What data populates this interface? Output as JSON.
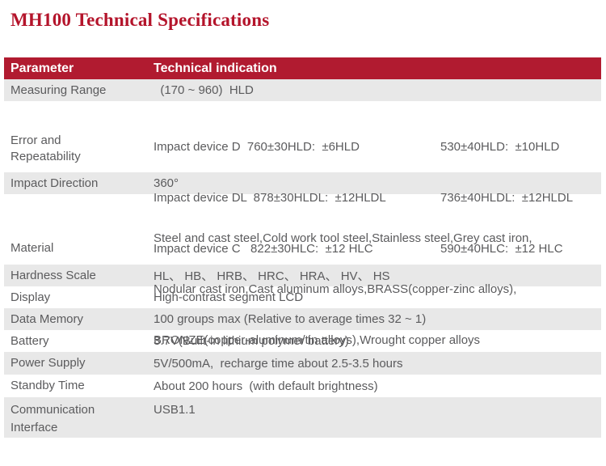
{
  "page": {
    "title": "MH100 Technical Specifications"
  },
  "colors": {
    "accent_red": "#b11b30",
    "title_red": "#b4142b",
    "row_gray": "#e8e8e8",
    "row_white": "#ffffff",
    "body_text_gray": "#5b5b5d",
    "header_text": "#ffffff"
  },
  "table": {
    "headers": {
      "parameter": "Parameter",
      "indication": "Technical indication"
    },
    "rows": [
      {
        "parameter": "Measuring Range",
        "value": "  (170 ~ 960)  HLD"
      },
      {
        "parameter": "Error and Repeatability",
        "lines": [
          {
            "left": "Impact device D  760±30HLD:  ±6HLD",
            "right": "530±40HLD:  ±10HLD"
          },
          {
            "left": "Impact device DL  878±30HLDL:  ±12HLDL",
            "right": "736±40HLDL:  ±12HLDL"
          },
          {
            "left": "Impact device C   822±30HLC:  ±12 HLC",
            "right": "590±40HLC:  ±12 HLC"
          }
        ]
      },
      {
        "parameter": "Impact Direction",
        "value": "360°"
      },
      {
        "parameter": "Material",
        "lines": [
          "Steel and cast steel,Cold work tool steel,Stainless steel,Grey cast iron,",
          "Nodular cast iron,Cast aluminum alloys,BRASS(copper-zinc alloys),",
          "BRONZE(copper-aluminum/tin alloys),Wrought copper alloys"
        ]
      },
      {
        "parameter": "Hardness Scale",
        "value": "HL、 HB、 HRB、 HRC、 HRA、 HV、 HS"
      },
      {
        "parameter": "Display",
        "value": "High-contrast segment LCD"
      },
      {
        "parameter": "Data Memory",
        "value": "100 groups max (Relative to average times 32 ~ 1)"
      },
      {
        "parameter": "Battery",
        "value": "3.7V(Built-in lithium polymer battery)"
      },
      {
        "parameter": "Power Supply",
        "value": "5V/500mA,  recharge time about 2.5-3.5 hours"
      },
      {
        "parameter": "Standby Time",
        "value": "About 200 hours  (with default brightness)"
      },
      {
        "parameter": "Communication Interface",
        "value": "USB1.1"
      }
    ]
  }
}
